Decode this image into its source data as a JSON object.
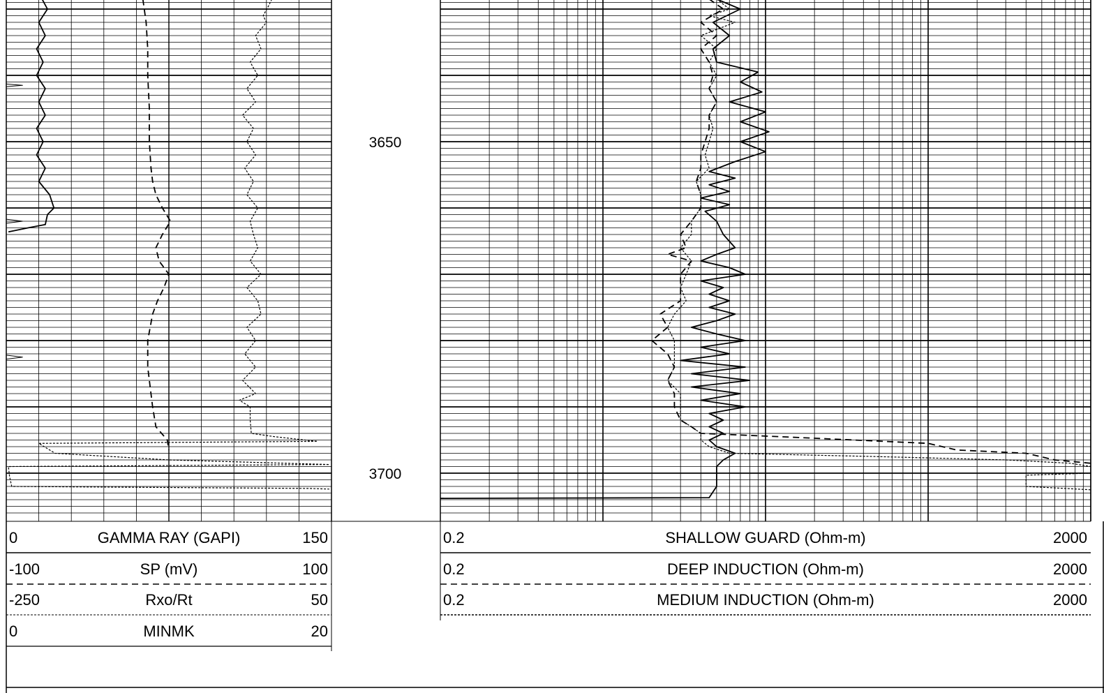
{
  "chart_data": {
    "type": "line",
    "depth_labels": [
      "3650",
      "3700"
    ],
    "depth_range": [
      3628.5,
      3706.5
    ],
    "track1": {
      "curves": [
        {
          "name": "GAMMA RAY (GAPI)",
          "min": "0",
          "max": "150",
          "style": "solid",
          "color": "#000000",
          "points": [
            [
              3628.5,
              16.5
            ],
            [
              3630,
              19
            ],
            [
              3632,
              15
            ],
            [
              3634,
              18
            ],
            [
              3636,
              14
            ],
            [
              3638,
              17
            ],
            [
              3640,
              14
            ],
            [
              3642,
              18
            ],
            [
              3644,
              15
            ],
            [
              3646,
              18
            ],
            [
              3648,
              14
            ],
            [
              3650,
              17
            ],
            [
              3652,
              14
            ],
            [
              3654,
              18
            ],
            [
              3656,
              15
            ],
            [
              3658,
              20
            ],
            [
              3660,
              22
            ],
            [
              3661,
              19
            ],
            [
              3662.5,
              18
            ],
            [
              3663,
              10
            ],
            [
              3663.6,
              1
            ]
          ]
        },
        {
          "name": "SP (mV)",
          "min": "-100",
          "max": "100",
          "style": "dashed",
          "color": "#000000",
          "points": [
            [
              3628.5,
              -16
            ],
            [
              3632,
              -14
            ],
            [
              3636,
              -13
            ],
            [
              3640,
              -13
            ],
            [
              3645,
              -12
            ],
            [
              3650,
              -12
            ],
            [
              3654,
              -11
            ],
            [
              3656,
              -10
            ],
            [
              3658,
              -8
            ],
            [
              3660,
              -4
            ],
            [
              3662,
              1
            ],
            [
              3664,
              -4
            ],
            [
              3666,
              -8
            ],
            [
              3668,
              -6
            ],
            [
              3670,
              0
            ],
            [
              3672,
              -3
            ],
            [
              3674,
              -7
            ],
            [
              3676,
              -10
            ],
            [
              3680,
              -13
            ],
            [
              3684,
              -13
            ],
            [
              3686,
              -12
            ],
            [
              3690,
              -10
            ],
            [
              3693,
              -8
            ],
            [
              3695,
              -1
            ],
            [
              3696.5,
              0
            ]
          ]
        },
        {
          "name": "Rxo/Rt",
          "min": "-250",
          "max": "50",
          "style": "dotted",
          "color": "#000000",
          "points": [
            [
              3628.5,
              -5
            ],
            [
              3629.5,
              -8
            ],
            [
              3631,
              -13
            ],
            [
              3632,
              -10
            ],
            [
              3634,
              -20
            ],
            [
              3636,
              -15
            ],
            [
              3638,
              -25
            ],
            [
              3640,
              -18
            ],
            [
              3642,
              -28
            ],
            [
              3644,
              -20
            ],
            [
              3646,
              -32
            ],
            [
              3648,
              -22
            ],
            [
              3650,
              -28
            ],
            [
              3652,
              -20
            ],
            [
              3654,
              -30
            ],
            [
              3656,
              -22
            ],
            [
              3658,
              -28
            ],
            [
              3660,
              -18
            ],
            [
              3662,
              -25
            ],
            [
              3664,
              -22
            ],
            [
              3666,
              -18
            ],
            [
              3668,
              -25
            ],
            [
              3670,
              -15
            ],
            [
              3672,
              -28
            ],
            [
              3674,
              -18
            ],
            [
              3676,
              -15
            ],
            [
              3678,
              -28
            ],
            [
              3680,
              -20
            ],
            [
              3682,
              -30
            ],
            [
              3684,
              -20
            ],
            [
              3686,
              -32
            ],
            [
              3688,
              -20
            ],
            [
              3689,
              -35
            ],
            [
              3690,
              -25
            ],
            [
              3692,
              -25
            ],
            [
              3694,
              -24
            ],
            [
              3694.5,
              -2
            ],
            [
              3695.2,
              37
            ],
            [
              3695.5,
              -220
            ],
            [
              3697,
              -205
            ],
            [
              3698,
              -100
            ],
            [
              3698.7,
              48
            ],
            [
              3699,
              -248
            ],
            [
              3700.5,
              -247
            ],
            [
              3702,
              -245
            ],
            [
              3702.3,
              30
            ],
            [
              3702.4,
              48
            ]
          ]
        },
        {
          "name": "MINMK",
          "min": "0",
          "max": "20",
          "style": "thin",
          "color": "#000000",
          "points": [
            [
              3641.3,
              0
            ],
            [
              3641.5,
              1
            ],
            [
              3641.7,
              0
            ],
            [
              3661.7,
              0
            ],
            [
              3662,
              1
            ],
            [
              3662.3,
              0
            ],
            [
              3682.2,
              0
            ],
            [
              3682.5,
              1
            ],
            [
              3682.8,
              0
            ]
          ]
        }
      ]
    },
    "track2": {
      "curves": [
        {
          "name": "SHALLOW GUARD (Ohm-m)",
          "min": "0.2",
          "max": "2000",
          "style": "solid",
          "color": "#000000",
          "points": [
            [
              3628.5,
              10
            ],
            [
              3630,
              14
            ],
            [
              3632,
              9.5
            ],
            [
              3634,
              12
            ],
            [
              3636,
              9.5
            ],
            [
              3638,
              10
            ],
            [
              3639.5,
              18
            ],
            [
              3641,
              14
            ],
            [
              3642.5,
              19
            ],
            [
              3644,
              12
            ],
            [
              3645.5,
              20
            ],
            [
              3647,
              14
            ],
            [
              3648.5,
              21
            ],
            [
              3650,
              14
            ],
            [
              3651.5,
              20
            ],
            [
              3653,
              13
            ],
            [
              3654.5,
              9
            ],
            [
              3655.5,
              13
            ],
            [
              3656.5,
              9
            ],
            [
              3657.5,
              12
            ],
            [
              3658.5,
              8
            ],
            [
              3659.5,
              12
            ],
            [
              3660.5,
              8.5
            ],
            [
              3662,
              10
            ],
            [
              3664,
              11
            ],
            [
              3666,
              13
            ],
            [
              3667,
              10
            ],
            [
              3668,
              8
            ],
            [
              3669,
              12
            ],
            [
              3670,
              15
            ],
            [
              3671,
              8
            ],
            [
              3672,
              11
            ],
            [
              3673,
              9
            ],
            [
              3674,
              12
            ],
            [
              3675,
              9
            ],
            [
              3676,
              13
            ],
            [
              3677,
              10
            ],
            [
              3678,
              7
            ],
            [
              3679,
              10
            ],
            [
              3680,
              15
            ],
            [
              3681,
              8
            ],
            [
              3682,
              12
            ],
            [
              3683,
              6
            ],
            [
              3684,
              15
            ],
            [
              3685,
              7
            ],
            [
              3686,
              16
            ],
            [
              3687,
              7
            ],
            [
              3688,
              14
            ],
            [
              3689,
              8
            ],
            [
              3690,
              15
            ],
            [
              3691,
              9
            ],
            [
              3692,
              11
            ],
            [
              3693,
              9
            ],
            [
              3694,
              11
            ],
            [
              3695,
              9
            ],
            [
              3696,
              10
            ],
            [
              3697,
              13
            ],
            [
              3698,
              11
            ],
            [
              3699,
              10
            ],
            [
              3700,
              10
            ],
            [
              3702,
              10
            ],
            [
              3703.7,
              9
            ],
            [
              3703.8,
              0.2
            ]
          ]
        },
        {
          "name": "DEEP INDUCTION (Ohm-m)",
          "min": "0.2",
          "max": "2000",
          "style": "dashed",
          "color": "#000000",
          "points": [
            [
              3628.5,
              9
            ],
            [
              3630,
              11
            ],
            [
              3632,
              8
            ],
            [
              3634,
              10
            ],
            [
              3636,
              8
            ],
            [
              3638,
              9
            ],
            [
              3640,
              9.5
            ],
            [
              3642,
              9
            ],
            [
              3644,
              10
            ],
            [
              3646,
              9
            ],
            [
              3648,
              9
            ],
            [
              3650,
              8.5
            ],
            [
              3652,
              8
            ],
            [
              3654,
              8
            ],
            [
              3656,
              7.5
            ],
            [
              3658,
              8
            ],
            [
              3660,
              8
            ],
            [
              3662,
              7
            ],
            [
              3664,
              6
            ],
            [
              3666,
              6.5
            ],
            [
              3667,
              5
            ],
            [
              3668,
              7
            ],
            [
              3670,
              6
            ],
            [
              3672,
              6
            ],
            [
              3674,
              6
            ],
            [
              3676,
              4.5
            ],
            [
              3678,
              5
            ],
            [
              3680,
              4
            ],
            [
              3682,
              5
            ],
            [
              3684,
              5.5
            ],
            [
              3686,
              5
            ],
            [
              3688,
              5.5
            ],
            [
              3690,
              5.5
            ],
            [
              3692,
              6
            ],
            [
              3693,
              7
            ],
            [
              3694,
              8
            ],
            [
              3694.5,
              25
            ],
            [
              3695,
              70
            ],
            [
              3695.5,
              200
            ],
            [
              3696.5,
              300
            ],
            [
              3697,
              800
            ],
            [
              3698,
              1200
            ],
            [
              3698.5,
              2000
            ]
          ]
        },
        {
          "name": "MEDIUM INDUCTION (Ohm-m)",
          "min": "0.2",
          "max": "2000",
          "style": "dotted",
          "color": "#000000",
          "points": [
            [
              3628.5,
              10
            ],
            [
              3630,
              12
            ],
            [
              3631,
              9
            ],
            [
              3632,
              13
            ],
            [
              3634,
              8
            ],
            [
              3636,
              10
            ],
            [
              3638,
              9
            ],
            [
              3640,
              10
            ],
            [
              3642,
              9
            ],
            [
              3644,
              10
            ],
            [
              3646,
              9
            ],
            [
              3648,
              9.5
            ],
            [
              3650,
              9
            ],
            [
              3652,
              8.5
            ],
            [
              3654,
              9
            ],
            [
              3656,
              7.5
            ],
            [
              3658,
              8
            ],
            [
              3660,
              8
            ],
            [
              3662,
              7
            ],
            [
              3664,
              7
            ],
            [
              3666,
              6
            ],
            [
              3668,
              7
            ],
            [
              3670,
              6.5
            ],
            [
              3672,
              6
            ],
            [
              3674,
              6.5
            ],
            [
              3676,
              5.5
            ],
            [
              3678,
              5
            ],
            [
              3680,
              5.5
            ],
            [
              3682,
              5.5
            ],
            [
              3684,
              5.5
            ],
            [
              3686,
              5
            ],
            [
              3688,
              6
            ],
            [
              3690,
              6
            ],
            [
              3692,
              6
            ],
            [
              3693,
              7
            ],
            [
              3694,
              8
            ],
            [
              3695,
              8
            ],
            [
              3696,
              9
            ],
            [
              3697,
              12
            ],
            [
              3697.5,
              100
            ],
            [
              3698,
              600
            ],
            [
              3698.5,
              1500
            ],
            [
              3699,
              2000
            ],
            [
              3700,
              2000
            ],
            [
              3700.3,
              800
            ],
            [
              3702,
              800
            ],
            [
              3702.5,
              2000
            ]
          ]
        }
      ]
    }
  }
}
